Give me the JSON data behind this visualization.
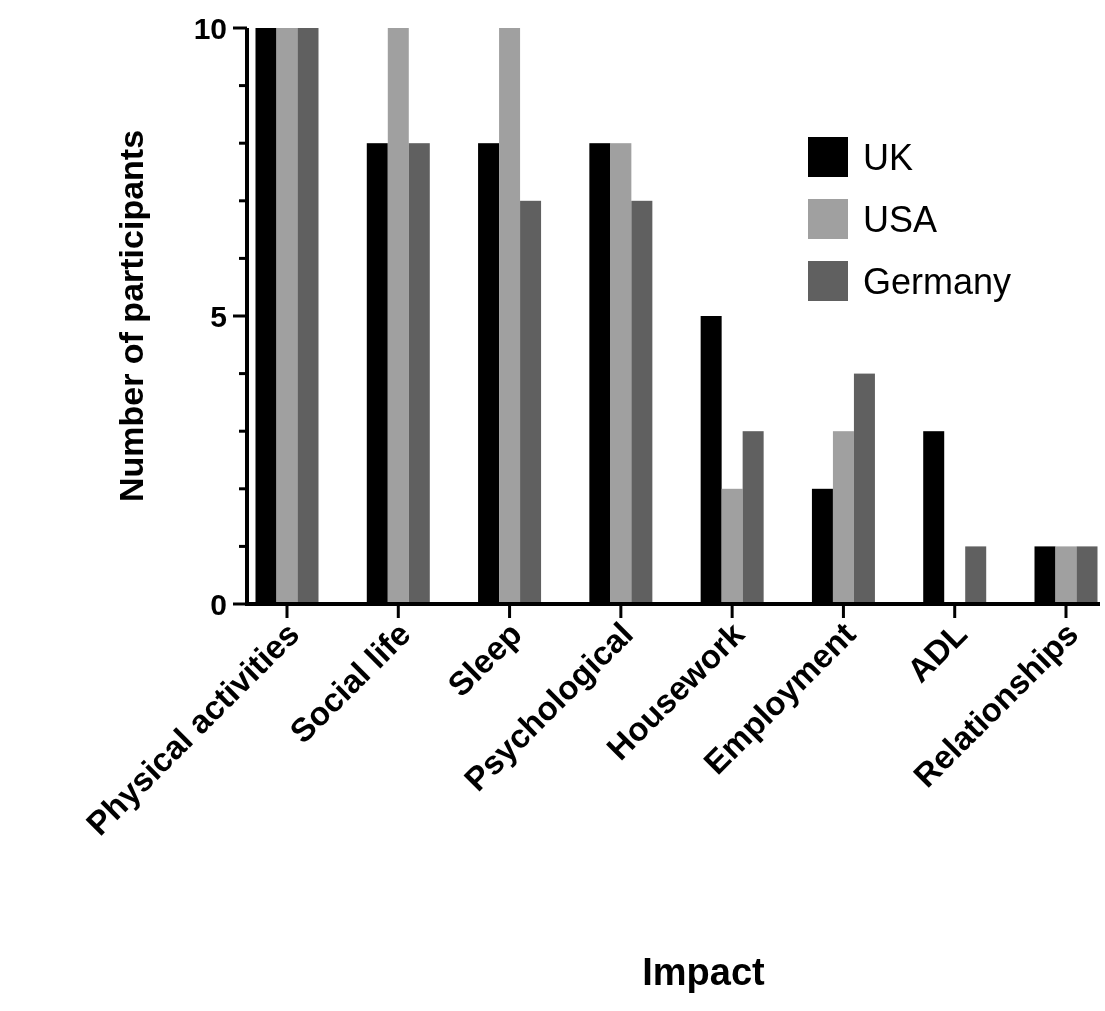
{
  "chart_data": {
    "type": "bar",
    "xlabel": "Impact",
    "ylabel": "Number of participants",
    "categories": [
      "Physical activities",
      "Social life",
      "Sleep",
      "Psychological",
      "Housework",
      "Employment",
      "ADL",
      "Relationships"
    ],
    "series": [
      {
        "name": "UK",
        "color": "#000000",
        "values": [
          10,
          8,
          8,
          8,
          5,
          2,
          3,
          1
        ]
      },
      {
        "name": "USA",
        "color": "#a0a0a0",
        "values": [
          10,
          10,
          10,
          8,
          2,
          3,
          0,
          1
        ]
      },
      {
        "name": "Germany",
        "color": "#606060",
        "values": [
          10,
          8,
          7,
          7,
          3,
          4,
          1,
          1
        ]
      }
    ],
    "ylim": [
      0,
      10
    ],
    "yticks": [
      0,
      {
        "value": 1,
        "label": null
      },
      {
        "value": 2,
        "label": null
      },
      {
        "value": 3,
        "label": null
      },
      {
        "value": 4,
        "label": null
      },
      5,
      {
        "value": 6,
        "label": null
      },
      {
        "value": 7,
        "label": null
      },
      {
        "value": 8,
        "label": null
      },
      {
        "value": 9,
        "label": null
      },
      10
    ],
    "grid": false,
    "legend": "top right"
  }
}
